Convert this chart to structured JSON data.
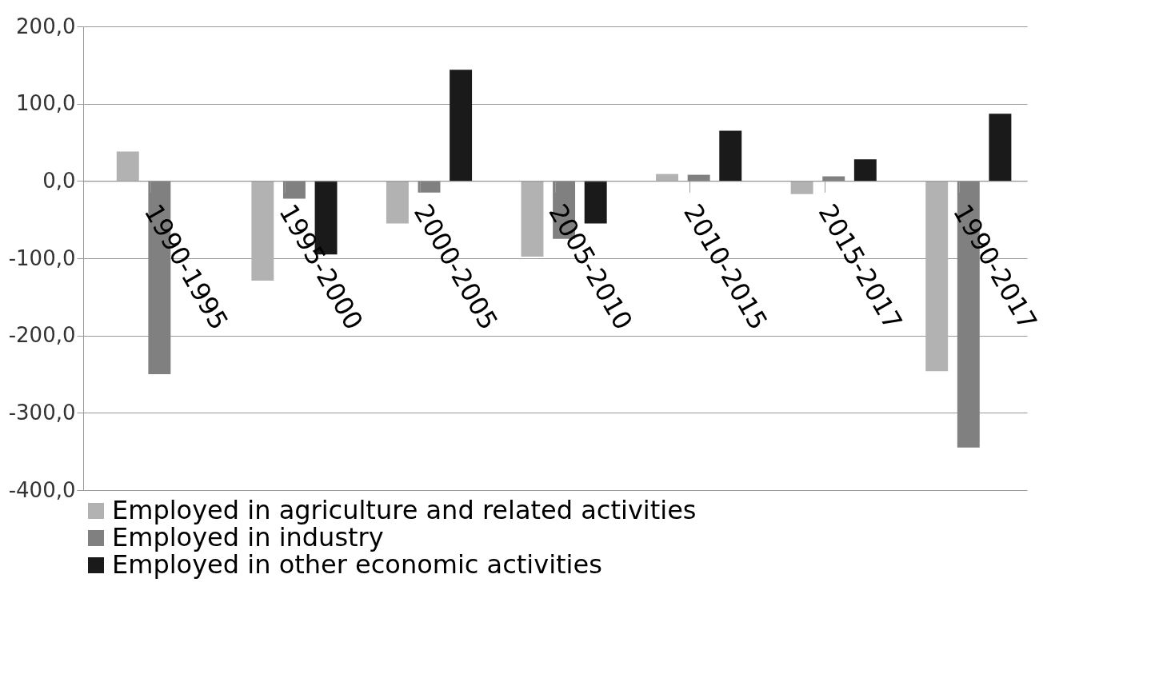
{
  "chart_data": {
    "type": "bar",
    "categories": [
      "1990-1995",
      "1995-2000",
      "2000-2005",
      "2005-2010",
      "2010-2015",
      "2015-2017",
      "1990-2017"
    ],
    "series": [
      {
        "name": "Employed in agriculture and related activities",
        "color": "#b2b2b2",
        "values": [
          38,
          -129,
          -55,
          -98,
          9,
          -17,
          -246
        ]
      },
      {
        "name": "Employed in industry",
        "color": "#808080",
        "values": [
          -250,
          -23,
          -15,
          -75,
          8,
          6,
          -345
        ]
      },
      {
        "name": "Employed in other economic activities",
        "color": "#1a1a1a",
        "values": [
          null,
          -95,
          144,
          -55,
          65,
          28,
          87
        ]
      }
    ],
    "ylim": [
      -400,
      200
    ],
    "yticks": [
      {
        "value": -400,
        "label": "-400,0"
      },
      {
        "value": -300,
        "label": "-300,0"
      },
      {
        "value": -200,
        "label": "-200,0"
      },
      {
        "value": -100,
        "label": "-100,0"
      },
      {
        "value": 0,
        "label": "0,0"
      },
      {
        "value": 100,
        "label": "100,0"
      },
      {
        "value": 200,
        "label": "200,0"
      }
    ],
    "grid": "y",
    "legend": "bottom"
  }
}
